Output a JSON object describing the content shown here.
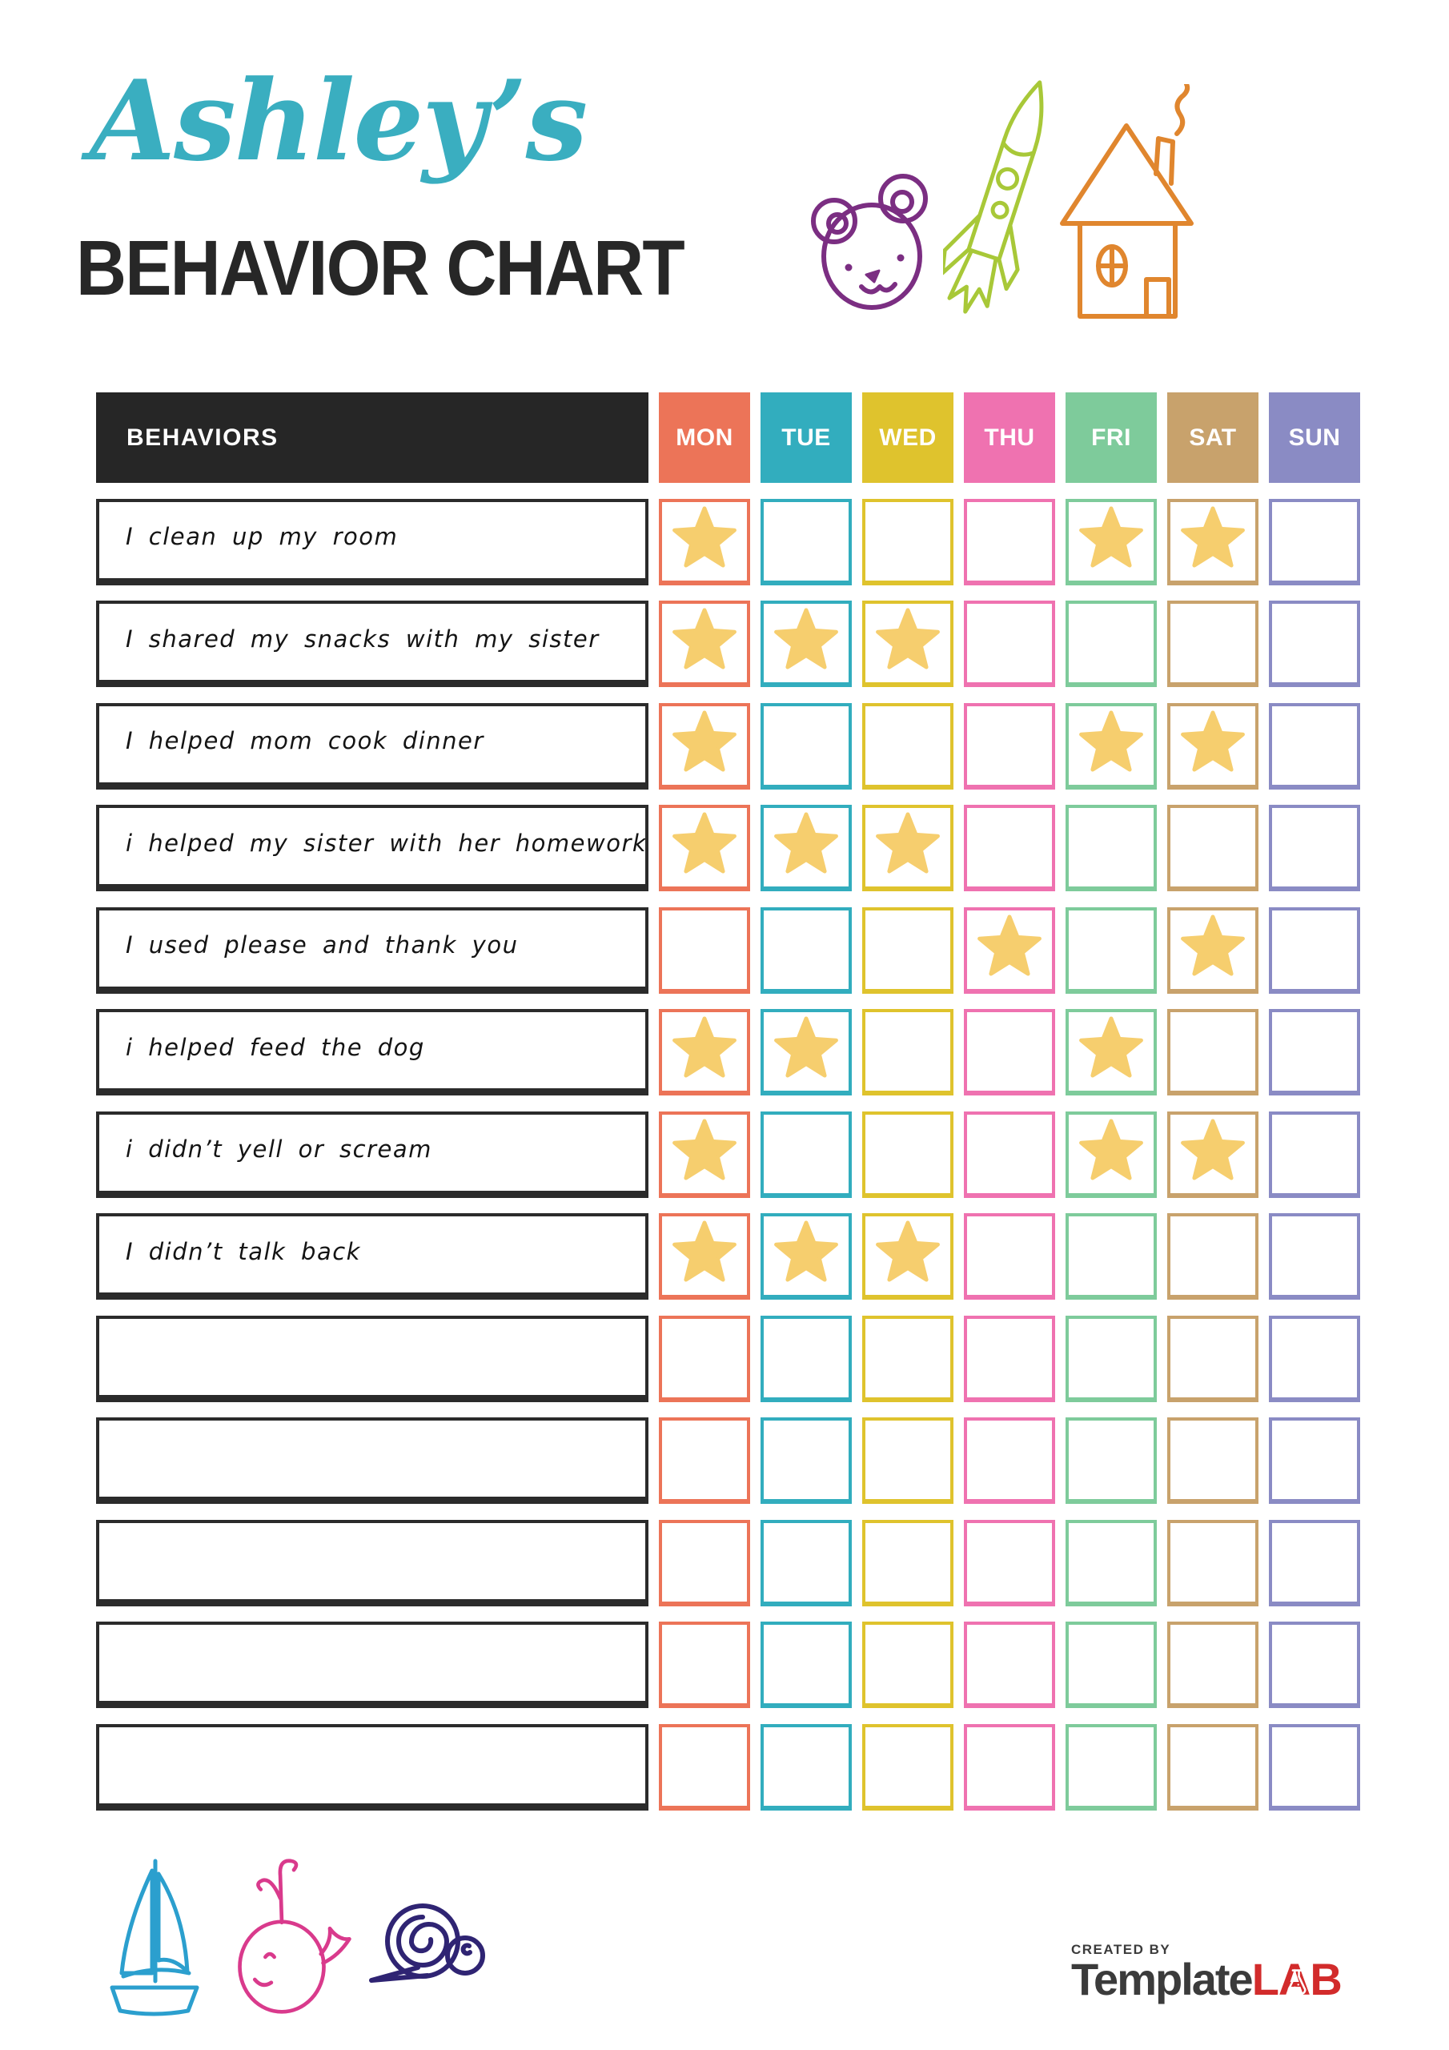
{
  "header": {
    "script_title": "Ashley’s",
    "script_title_color": "#3AAEC0",
    "main_title": "BEHAVIOR CHART",
    "main_title_color": "#272727"
  },
  "icons": {
    "bear-icon": "#7B2E82",
    "rocket-icon": "#A8C838",
    "house-icon": "#E0862E",
    "sailboat-icon": "#2B9FCE",
    "whale-icon": "#D93A8C",
    "snail-icon": "#2F2473"
  },
  "table": {
    "behaviors_header": "BEHAVIORS",
    "header_bg": "#262626",
    "star_color": "#F6CE6E",
    "days": [
      {
        "label": "MON",
        "color": "#EC7458"
      },
      {
        "label": "TUE",
        "color": "#32ADBE"
      },
      {
        "label": "WED",
        "color": "#DFC32D"
      },
      {
        "label": "THU",
        "color": "#EF72B0"
      },
      {
        "label": "FRI",
        "color": "#7ECB9B"
      },
      {
        "label": "SAT",
        "color": "#C8A26C"
      },
      {
        "label": "SUN",
        "color": "#8A8BC4"
      }
    ],
    "rows": [
      {
        "label": "I clean up my room",
        "stars": [
          1,
          0,
          0,
          0,
          1,
          1,
          0
        ]
      },
      {
        "label": "I shared my snacks with my sister",
        "stars": [
          1,
          1,
          1,
          0,
          0,
          0,
          0
        ]
      },
      {
        "label": "I helped mom cook dinner",
        "stars": [
          1,
          0,
          0,
          0,
          1,
          1,
          0
        ]
      },
      {
        "label": "i helped my sister with her homework",
        "stars": [
          1,
          1,
          1,
          0,
          0,
          0,
          0
        ]
      },
      {
        "label": "I used please and thank you",
        "stars": [
          0,
          0,
          0,
          1,
          0,
          1,
          0
        ]
      },
      {
        "label": "i helped feed the dog",
        "stars": [
          1,
          1,
          0,
          0,
          1,
          0,
          0
        ]
      },
      {
        "label": "i didn’t yell or scream",
        "stars": [
          1,
          0,
          0,
          0,
          1,
          1,
          0
        ]
      },
      {
        "label": "I didn’t talk back",
        "stars": [
          1,
          1,
          1,
          0,
          0,
          0,
          0
        ]
      },
      {
        "label": "",
        "stars": [
          0,
          0,
          0,
          0,
          0,
          0,
          0
        ]
      },
      {
        "label": "",
        "stars": [
          0,
          0,
          0,
          0,
          0,
          0,
          0
        ]
      },
      {
        "label": "",
        "stars": [
          0,
          0,
          0,
          0,
          0,
          0,
          0
        ]
      },
      {
        "label": "",
        "stars": [
          0,
          0,
          0,
          0,
          0,
          0,
          0
        ]
      },
      {
        "label": "",
        "stars": [
          0,
          0,
          0,
          0,
          0,
          0,
          0
        ]
      }
    ]
  },
  "footer": {
    "logo": {
      "created_by": "CREATED BY",
      "brand_part1": "Template",
      "brand_part2": "LAB",
      "brand_color1": "#3B3B3B",
      "brand_color2": "#D22B2B"
    }
  }
}
